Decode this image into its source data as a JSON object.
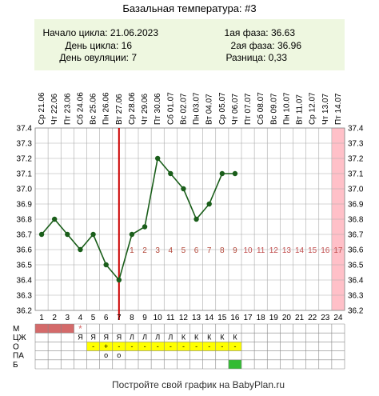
{
  "title": "Базальная температура: #3",
  "info": {
    "cycle_start": "Начало цикла: 21.06.2023",
    "cycle_day": "День цикла: 16",
    "ovulation_day": "День овуляции: 7",
    "phase1": "1ая фаза: 36.63",
    "phase2": "2ая фаза: 36.96",
    "difference": "Разница: 0,33"
  },
  "footer": "Постройте свой график на BabyPlan.ru",
  "colors": {
    "line": "#1a5e1a",
    "ovulation_line": "#cc0000",
    "post_ovulation_numbers": "#b44a3c",
    "future_numbers": "#c25050",
    "info_bg": "#eef7e0",
    "highlight_band": "#ffc0c8",
    "menstruation": "#d46a6a",
    "yellow": "#ffff00",
    "green": "#33bb33"
  },
  "chart_data": {
    "type": "line",
    "title": "Базальная температура: #3",
    "x": [
      1,
      2,
      3,
      4,
      5,
      6,
      7,
      8,
      9,
      10,
      11,
      12,
      13,
      14,
      15,
      16
    ],
    "values": [
      36.7,
      36.8,
      36.7,
      36.6,
      36.7,
      36.5,
      36.4,
      36.7,
      36.75,
      37.2,
      37.1,
      37.0,
      36.8,
      36.9,
      37.1,
      37.1
    ],
    "ylim": [
      36.2,
      37.4
    ],
    "yticks": [
      "37.4",
      "37.3",
      "37.2",
      "37.1",
      "37.0",
      "36.9",
      "36.8",
      "36.7",
      "36.6",
      "36.5",
      "36.4",
      "36.3",
      "36.2"
    ],
    "days": [
      "1",
      "2",
      "3",
      "4",
      "5",
      "6",
      "7",
      "8",
      "9",
      "10",
      "11",
      "12",
      "13",
      "14",
      "15",
      "16",
      "17",
      "18",
      "19",
      "20",
      "21",
      "22",
      "23",
      "24"
    ],
    "dates": [
      "Ср 21.06",
      "Чт 22.06",
      "Пт 23.06",
      "Сб 24.06",
      "Вс 25.06",
      "Пн 26.06",
      "Вт 27.06",
      "Ср 28.06",
      "Чт 29.06",
      "Пт 30.06",
      "Сб 01.07",
      "Вс 02.07",
      "Пн 03.07",
      "Вт 04.07",
      "Ср 05.07",
      "Чт 06.07",
      "Пт 07.07",
      "Сб 08.07",
      "Вс 09.07",
      "Пн 10.07",
      "Вт 11.07",
      "Ср 12.07",
      "Чт 13.07",
      "Пт 14.07"
    ],
    "ovulation_day": 7,
    "highlight_day": 24,
    "post_ovulation_labels": [
      "1",
      "2",
      "3",
      "4",
      "5",
      "6",
      "7",
      "8",
      "9",
      "10",
      "11",
      "12",
      "13",
      "14",
      "15",
      "16",
      "17"
    ],
    "grid": true
  },
  "table": {
    "row_labels": [
      "М",
      "ЦЖ",
      "О",
      "ПА",
      "Б"
    ],
    "menstruation_days": [
      1,
      2,
      3
    ],
    "menstruation_star": {
      "day": 4,
      "text": "*"
    },
    "cervical_mucus": [
      "",
      "",
      "",
      "Я",
      "Я",
      "Я",
      "Я",
      "Л",
      "Л",
      "Л",
      "Л",
      "К",
      "К",
      "К",
      "К",
      "К"
    ],
    "ovulation_test": [
      "",
      "",
      "",
      "",
      "-",
      "+",
      "-",
      "-",
      "-",
      "-",
      "-",
      "-",
      "-",
      "-",
      "-",
      "-"
    ],
    "ovulation_test_yellow_from": 5,
    "ovulation_test_yellow_to": 16,
    "pa": [
      "",
      "",
      "",
      "",
      "",
      "о",
      "о",
      "",
      "",
      "",
      "",
      "",
      "",
      "",
      "",
      ""
    ],
    "b_green_day": 16
  }
}
